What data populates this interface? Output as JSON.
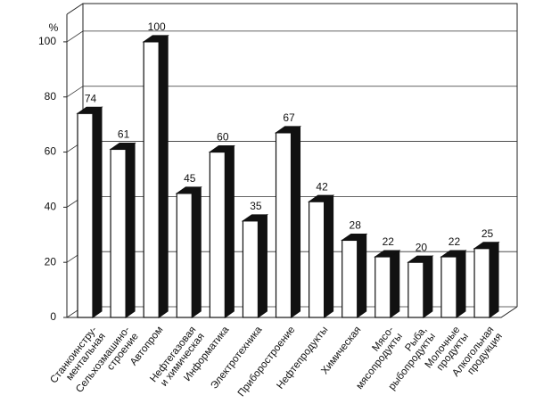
{
  "chart_data": {
    "type": "bar3d",
    "y_unit": "%",
    "categories": [
      "Станкоинстру-\nментальная",
      "Сельхозмашино-\nстроение",
      "Автопром",
      "Нефтегазовая\nи химическая",
      "Информатика",
      "Электротехника",
      "Приборостроение",
      "Нефтепродукты",
      "Химическая",
      "Мясо-\nмясопродукты",
      "Рыба,\nрыбопродукты",
      "Молочные\nпродукты",
      "Алкогольная\nпродукция"
    ],
    "values": [
      74,
      61,
      100,
      45,
      60,
      35,
      67,
      42,
      28,
      22,
      20,
      22,
      25
    ],
    "color": "#ffffff",
    "side_color": "#111111",
    "ylim": [
      0,
      110
    ],
    "yticks": [
      0,
      20,
      40,
      60,
      80,
      100
    ],
    "grid": true
  }
}
